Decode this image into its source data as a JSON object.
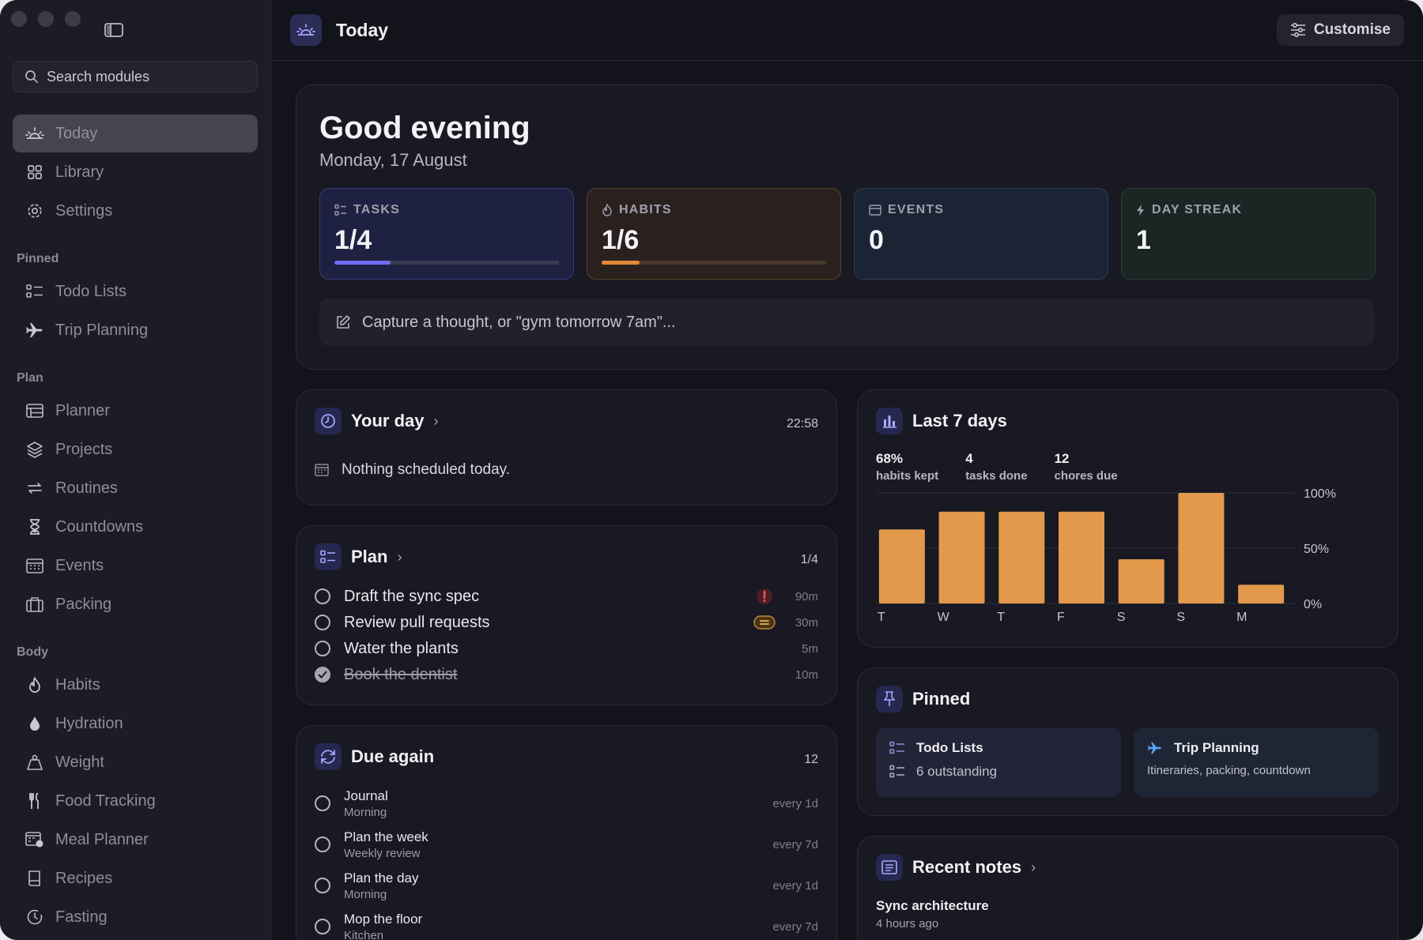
{
  "app": {
    "page_title": "Today",
    "customise_label": "Customise"
  },
  "sidebar": {
    "search_placeholder": "Search modules",
    "items_top": [
      {
        "label": "Today",
        "icon": "sunrise-icon"
      },
      {
        "label": "Library",
        "icon": "grid-icon"
      },
      {
        "label": "Settings",
        "icon": "gear-icon"
      }
    ],
    "sections": [
      {
        "title": "Pinned",
        "items": [
          {
            "label": "Todo Lists",
            "icon": "checklist-icon"
          },
          {
            "label": "Trip Planning",
            "icon": "plane-icon"
          }
        ]
      },
      {
        "title": "Plan",
        "items": [
          {
            "label": "Planner",
            "icon": "planner-icon"
          },
          {
            "label": "Projects",
            "icon": "layers-icon"
          },
          {
            "label": "Routines",
            "icon": "repeat-icon"
          },
          {
            "label": "Countdowns",
            "icon": "hourglass-icon"
          },
          {
            "label": "Events",
            "icon": "calendar-icon"
          },
          {
            "label": "Packing",
            "icon": "suitcase-icon"
          }
        ]
      },
      {
        "title": "Body",
        "items": [
          {
            "label": "Habits",
            "icon": "flame-icon"
          },
          {
            "label": "Hydration",
            "icon": "drop-icon"
          },
          {
            "label": "Weight",
            "icon": "weight-icon"
          },
          {
            "label": "Food Tracking",
            "icon": "cutlery-icon"
          },
          {
            "label": "Meal Planner",
            "icon": "meal-calendar-icon"
          },
          {
            "label": "Recipes",
            "icon": "book-icon"
          },
          {
            "label": "Fasting",
            "icon": "timer-icon"
          }
        ]
      }
    ]
  },
  "hero": {
    "greeting": "Good evening",
    "date": "Monday, 17 August",
    "stats": [
      {
        "label": "TASKS",
        "value": "1/4",
        "progress": 0.25,
        "accent": "#6e6cf0"
      },
      {
        "label": "HABITS",
        "value": "1/6",
        "progress": 0.17,
        "accent": "#e08b36"
      },
      {
        "label": "EVENTS",
        "value": "0"
      },
      {
        "label": "DAY STREAK",
        "value": "1"
      }
    ],
    "capture_placeholder": "Capture a thought, or \"gym tomorrow 7am\"..."
  },
  "your_day": {
    "title": "Your day",
    "time": "22:58",
    "empty_text": "Nothing scheduled today."
  },
  "plan": {
    "title": "Plan",
    "count": "1/4",
    "tasks": [
      {
        "text": "Draft the sync spec",
        "duration": "90m",
        "priority": "high",
        "done": false
      },
      {
        "text": "Review pull requests",
        "duration": "30m",
        "priority": "medium",
        "done": false
      },
      {
        "text": "Water the plants",
        "duration": "5m",
        "priority": "none",
        "done": false
      },
      {
        "text": "Book the dentist",
        "duration": "10m",
        "priority": "none",
        "done": true
      }
    ]
  },
  "due_again": {
    "title": "Due again",
    "count": "12",
    "items": [
      {
        "title": "Journal",
        "sub": "Morning",
        "freq": "every 1d"
      },
      {
        "title": "Plan the week",
        "sub": "Weekly review",
        "freq": "every 7d"
      },
      {
        "title": "Plan the day",
        "sub": "Morning",
        "freq": "every 1d"
      },
      {
        "title": "Mop the floor",
        "sub": "Kitchen",
        "freq": "every 7d"
      }
    ]
  },
  "last7": {
    "title": "Last 7 days",
    "stats": [
      {
        "value": "68%",
        "label": "habits kept"
      },
      {
        "value": "4",
        "label": "tasks done"
      },
      {
        "value": "12",
        "label": "chores due"
      }
    ]
  },
  "chart_data": {
    "type": "bar",
    "categories": [
      "T",
      "W",
      "T",
      "F",
      "S",
      "S",
      "M"
    ],
    "values": [
      67,
      83,
      83,
      83,
      40,
      100,
      17
    ],
    "ylim": [
      0,
      100
    ],
    "ytick_labels": [
      "100%",
      "50%",
      "0%"
    ],
    "grid": true,
    "color": "#e3994c"
  },
  "pinned": {
    "title": "Pinned",
    "tiles": [
      {
        "title": "Todo Lists",
        "subtitle": "6 outstanding"
      },
      {
        "title": "Trip Planning",
        "subtitle": "Itineraries, packing, countdown"
      }
    ]
  },
  "recent_notes": {
    "title": "Recent notes",
    "notes": [
      {
        "title": "Sync architecture",
        "time": "4 hours ago"
      }
    ]
  }
}
